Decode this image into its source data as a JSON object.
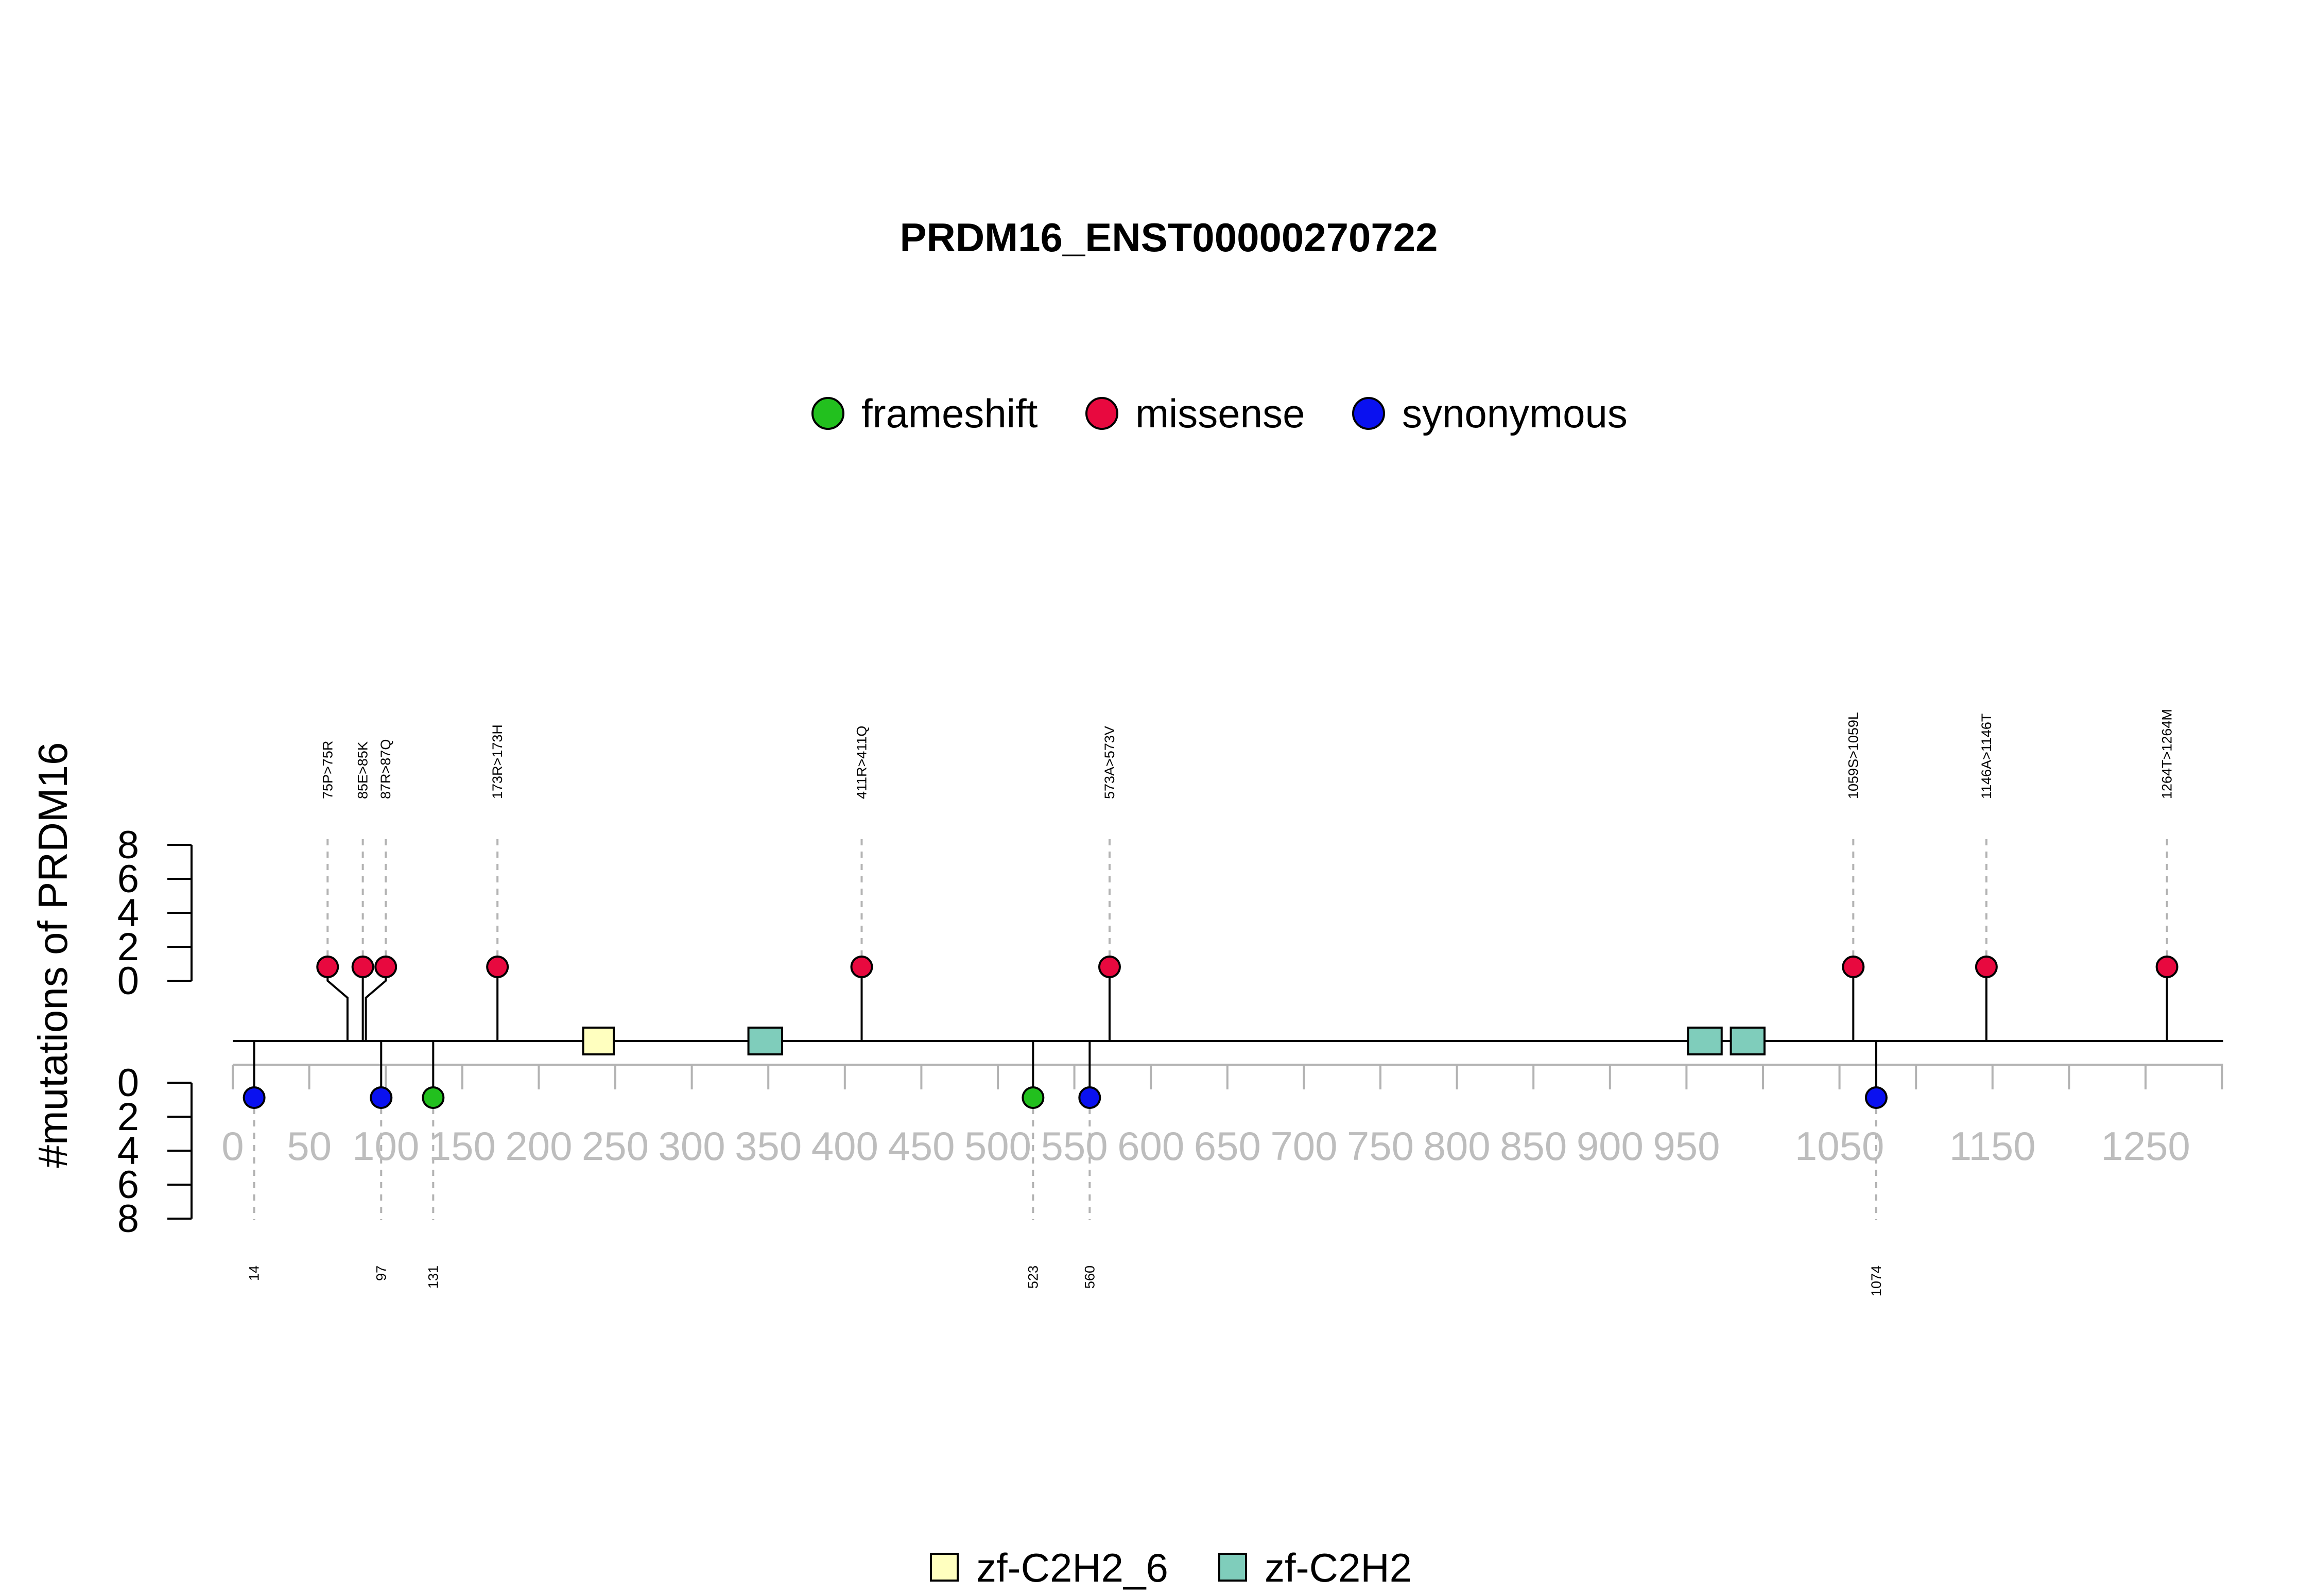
{
  "chart_data": {
    "type": "lollipop",
    "title": "PRDM16_ENST00000270722",
    "ylabel": "#mutations of PRDM16",
    "xlim": [
      0,
      1300
    ],
    "ylim_top": [
      0,
      8
    ],
    "ylim_bottom": [
      0,
      8
    ],
    "y_ticks": [
      "0",
      "2",
      "4",
      "6",
      "8"
    ],
    "x_ticks": [
      "0",
      "50",
      "100",
      "150",
      "200",
      "250",
      "300",
      "350",
      "400",
      "450",
      "500",
      "550",
      "600",
      "650",
      "700",
      "750",
      "800",
      "850",
      "900",
      "950",
      "1050",
      "1150",
      "1250"
    ],
    "x_tick_values": [
      0,
      50,
      100,
      150,
      200,
      250,
      300,
      350,
      400,
      450,
      500,
      550,
      600,
      650,
      700,
      750,
      800,
      850,
      900,
      950,
      1050,
      1150,
      1250
    ],
    "legend_mutations": [
      {
        "name": "frameshift",
        "color": "#22C01E"
      },
      {
        "name": "missense",
        "color": "#E8093F"
      },
      {
        "name": "synonymous",
        "color": "#0A11F0"
      }
    ],
    "legend_domains": [
      {
        "name": "zf-C2H2_6",
        "color": "#FFFFBF"
      },
      {
        "name": "zf-C2H2",
        "color": "#7FCDBB"
      }
    ],
    "domains": [
      {
        "name": "zf-C2H2_6",
        "start": 229,
        "end": 249
      },
      {
        "name": "zf-C2H2",
        "start": 337,
        "end": 359
      },
      {
        "name": "zf-C2H2",
        "start": 951,
        "end": 973
      },
      {
        "name": "zf-C2H2",
        "start": 979,
        "end": 1001
      }
    ],
    "mutations_top": [
      {
        "label": "75P>75R",
        "pos": 75,
        "display_pos": 62,
        "count": 1,
        "type": "missense"
      },
      {
        "label": "85E>85K",
        "pos": 85,
        "display_pos": 85,
        "count": 1,
        "type": "missense"
      },
      {
        "label": "87R>87Q",
        "pos": 87,
        "display_pos": 100,
        "count": 1,
        "type": "missense"
      },
      {
        "label": "173R>173H",
        "pos": 173,
        "display_pos": 173,
        "count": 1,
        "type": "missense"
      },
      {
        "label": "411R>411Q",
        "pos": 411,
        "display_pos": 411,
        "count": 1,
        "type": "missense"
      },
      {
        "label": "573A>573V",
        "pos": 573,
        "display_pos": 573,
        "count": 1,
        "type": "missense"
      },
      {
        "label": "1059S>1059L",
        "pos": 1059,
        "display_pos": 1059,
        "count": 1,
        "type": "missense"
      },
      {
        "label": "1146A>1146T",
        "pos": 1146,
        "display_pos": 1146,
        "count": 1,
        "type": "missense"
      },
      {
        "label": "1264T>1264M",
        "pos": 1264,
        "display_pos": 1264,
        "count": 1,
        "type": "missense"
      }
    ],
    "mutations_bottom": [
      {
        "label": "14",
        "pos": 14,
        "count": 1,
        "type": "synonymous"
      },
      {
        "label": "97",
        "pos": 97,
        "count": 1,
        "type": "synonymous"
      },
      {
        "label": "131",
        "pos": 131,
        "count": 1,
        "type": "frameshift"
      },
      {
        "label": "523",
        "pos": 523,
        "count": 1,
        "type": "frameshift"
      },
      {
        "label": "560",
        "pos": 560,
        "count": 1,
        "type": "synonymous"
      },
      {
        "label": "1074",
        "pos": 1074,
        "count": 1,
        "type": "synonymous"
      }
    ]
  }
}
